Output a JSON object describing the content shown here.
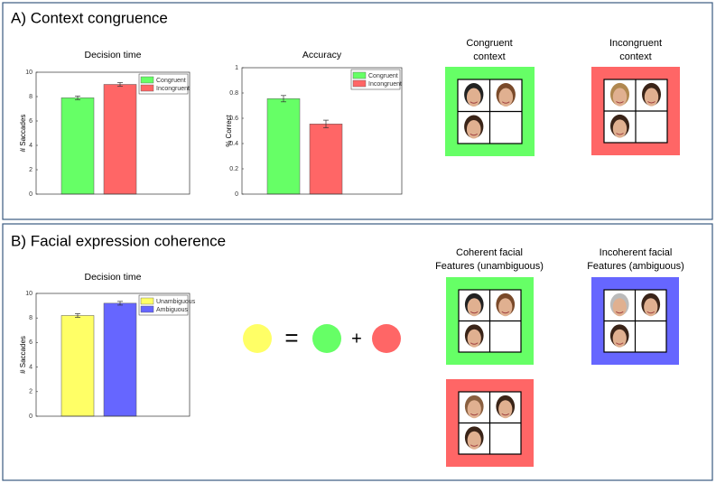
{
  "panel_a_title": "A) Context congruence",
  "panel_b_title": "B) Facial expression coherence",
  "chart_data": [
    {
      "type": "bar",
      "title": "Decision time",
      "y_label": "# Saccades",
      "series": [
        {
          "name": "Congruent",
          "color": "#66ff66",
          "values": [
            7.9
          ],
          "errors": [
            0.15
          ]
        },
        {
          "name": "Incongruent",
          "color": "#ff6666",
          "values": [
            9.0
          ],
          "errors": [
            0.15
          ]
        }
      ],
      "ylim": [
        0,
        10
      ],
      "yticks": [
        0,
        2,
        4,
        6,
        8,
        10
      ],
      "legend": "upper right"
    },
    {
      "type": "bar",
      "title": "Accuracy",
      "y_label": "% Correct",
      "series": [
        {
          "name": "Congruent",
          "color": "#66ff66",
          "values": [
            0.755
          ],
          "errors": [
            0.025
          ]
        },
        {
          "name": "Incongruent",
          "color": "#ff6666",
          "values": [
            0.555
          ],
          "errors": [
            0.03
          ]
        }
      ],
      "ylim": [
        0,
        1
      ],
      "yticks": [
        0,
        0.2,
        0.4,
        0.6,
        0.8,
        1
      ],
      "legend": "upper right"
    },
    {
      "type": "bar",
      "title": "Decision time",
      "y_label": "# Saccades",
      "series": [
        {
          "name": "Unambiguous",
          "color": "#ffff66",
          "values": [
            8.2
          ],
          "errors": [
            0.15
          ]
        },
        {
          "name": "Ambiguous",
          "color": "#6666ff",
          "values": [
            9.2
          ],
          "errors": [
            0.15
          ]
        }
      ],
      "ylim": [
        0,
        10
      ],
      "yticks": [
        0,
        2,
        4,
        6,
        8,
        10
      ],
      "legend": "upper right"
    }
  ],
  "face_grids": [
    {
      "label": [
        "Congruent",
        "context"
      ]
    },
    {
      "label": [
        "Incongruent",
        "context"
      ]
    },
    {
      "label": [
        "Coherent facial",
        "Features (unambiguous)"
      ]
    },
    {
      "label": [
        "Incoherent facial",
        "Features (ambiguous)"
      ]
    }
  ],
  "equation": {
    "equals": "=",
    "plus": "+"
  }
}
